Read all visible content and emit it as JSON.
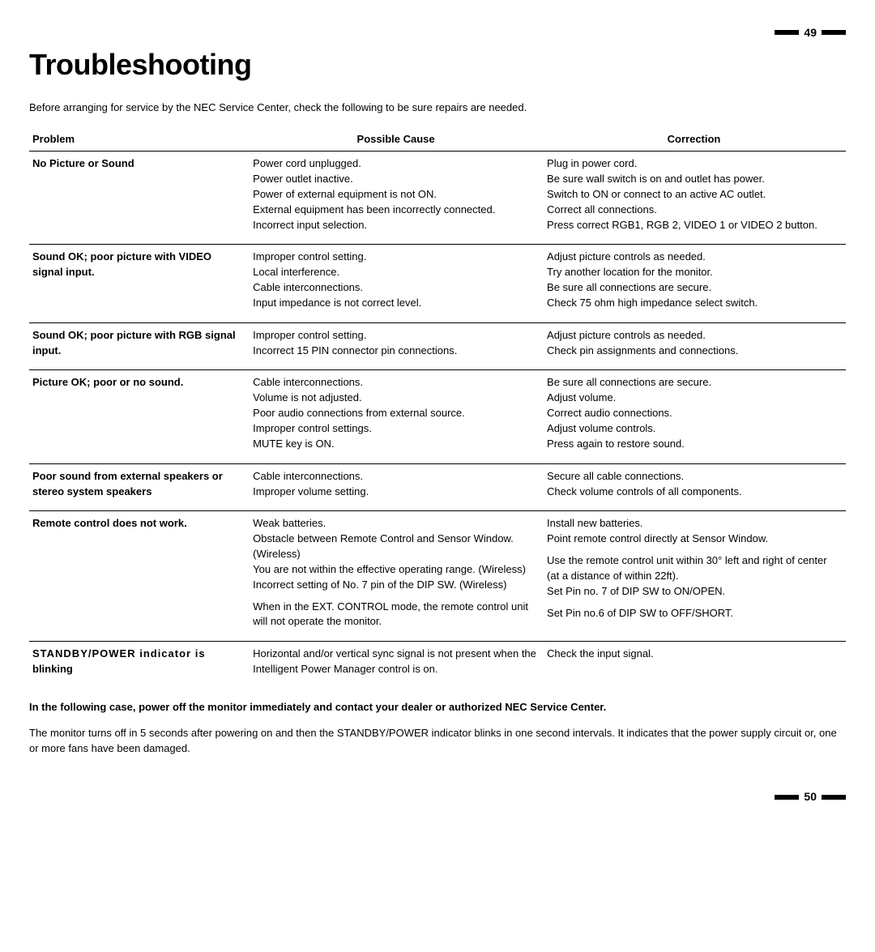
{
  "page_top_number": "49",
  "page_bottom_number": "50",
  "title": "Troubleshooting",
  "intro": "Before arranging for service by the NEC Service Center, check the following to be sure repairs are needed.",
  "headers": {
    "problem": "Problem",
    "cause": "Possible Cause",
    "correction": "Correction"
  },
  "rows": [
    {
      "problem": "No Picture or Sound",
      "cause": "Power cord unplugged.\nPower outlet inactive.\nPower of external equipment is not ON.\nExternal equipment has been incorrectly connected.\nIncorrect input selection.",
      "correction": "Plug in power cord.\nBe sure wall switch is on and outlet has power.\nSwitch to ON or connect to an active AC outlet.\nCorrect all connections.\nPress correct RGB1, RGB 2, VIDEO 1 or VIDEO 2 button.",
      "sep": true
    },
    {
      "problem": "Sound OK; poor picture with VIDEO signal input.",
      "cause": "Improper control setting.\nLocal interference.\nCable interconnections.\nInput impedance is not correct level.",
      "correction": "Adjust picture controls as needed.\nTry another location for the monitor.\nBe sure all connections are secure.\nCheck 75 ohm high impedance select switch.",
      "sep": true
    },
    {
      "problem": "Sound OK; poor picture with RGB signal input.",
      "cause": "Improper control setting.\nIncorrect 15 PIN connector pin connections.",
      "correction": "Adjust picture controls as needed.\nCheck pin assignments and connections.",
      "sep": true
    },
    {
      "problem": "Picture OK; poor or no sound.",
      "cause": "Cable interconnections.\nVolume is not adjusted.\nPoor audio connections from external source.\nImproper control settings.\nMUTE key is ON.",
      "correction": "Be sure all connections are secure.\nAdjust volume.\nCorrect audio connections.\nAdjust volume controls.\nPress again to restore sound.",
      "sep": true
    },
    {
      "problem": "Poor sound from external speakers or stereo system speakers",
      "cause": "Cable interconnections.\nImproper volume setting.",
      "correction": "Secure all cable connections.\nCheck volume controls of all components.",
      "sep": true
    },
    {
      "problem": "Remote control does not work.",
      "cause": "Weak batteries.\nObstacle between Remote Control and Sensor Window. (Wireless)\nYou are not within the effective operating range.  (Wireless)\nIncorrect setting of No. 7 pin of the DIP SW. (Wireless)\n \nWhen in the EXT. CONTROL mode, the remote control unit will not operate the monitor.",
      "correction": "Install new batteries.\nPoint remote control directly at Sensor Window.\n \nUse the remote control unit within 30° left and right of center (at a distance of within 22ft).\nSet Pin no. 7 of DIP SW to ON/OPEN.\n \nSet  Pin no.6 of DIP SW to OFF/SHORT.",
      "sep": true
    },
    {
      "problem_html": "<span class=\"spaced\">STANDBY/POWER indicator is</span> blinking",
      "cause": "Horizontal and/or vertical sync signal is not present when the Intelligent Power Manager control is on.",
      "correction": "Check the input signal.",
      "sep": false
    }
  ],
  "footer_bold": "In the following case, power off the monitor immediately and contact your dealer or authorized NEC Service Center.",
  "footer_text": "The monitor turns off in 5 seconds after powering on and then the STANDBY/POWER indicator blinks in one second intervals.  It indicates that the power supply circuit or, one or more fans have been damaged."
}
